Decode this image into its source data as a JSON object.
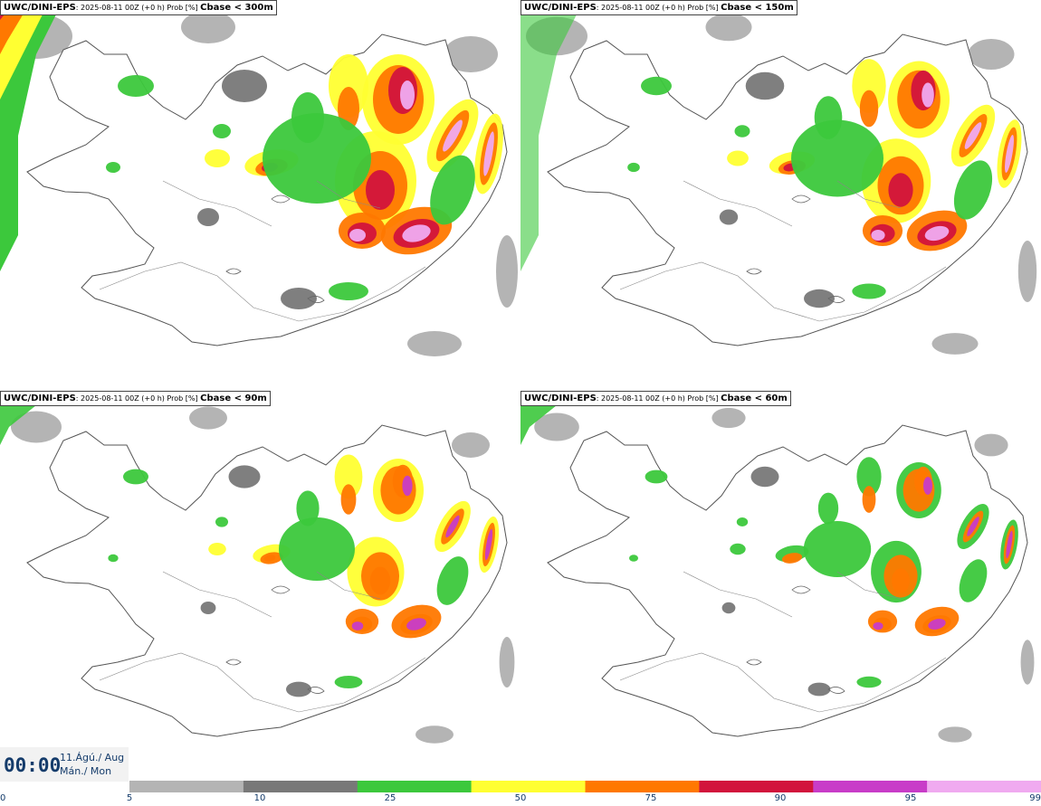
{
  "panels": [
    {
      "model": "UWC/DINI-EPS",
      "run": ": 2025-08-11 00Z (+0 h) Prob [%] ",
      "threshold": "Cbase < 300m",
      "intensity": 1.0,
      "coastal": 1
    },
    {
      "model": "UWC/DINI-EPS",
      "run": ": 2025-08-11 00Z (+0 h) Prob [%] ",
      "threshold": "Cbase < 150m",
      "intensity": 0.85,
      "coastal": 0.6
    },
    {
      "model": "UWC/DINI-EPS",
      "run": ": 2025-08-11 00Z (+0 h) Prob [%] ",
      "threshold": "Cbase < 90m",
      "intensity": 0.7,
      "coastal": 0.3
    },
    {
      "model": "UWC/DINI-EPS",
      "run": ": 2025-08-11 00Z (+0 h) Prob [%] ",
      "threshold": "Cbase < 60m",
      "intensity": 0.62,
      "coastal": 0.2
    }
  ],
  "time": {
    "clock": "00:00",
    "date": "11.Ágú./ Aug",
    "day": "Mán./ Mon"
  },
  "legend": {
    "ticks": [
      "0",
      "5",
      "10",
      "25",
      "50",
      "75",
      "90",
      "95",
      "99"
    ],
    "colors": [
      "#b4b4b4",
      "#787878",
      "#3cc83c",
      "#ffff32",
      "#ff7800",
      "#d2143c",
      "#c83cc8",
      "#f0aaf0"
    ]
  }
}
